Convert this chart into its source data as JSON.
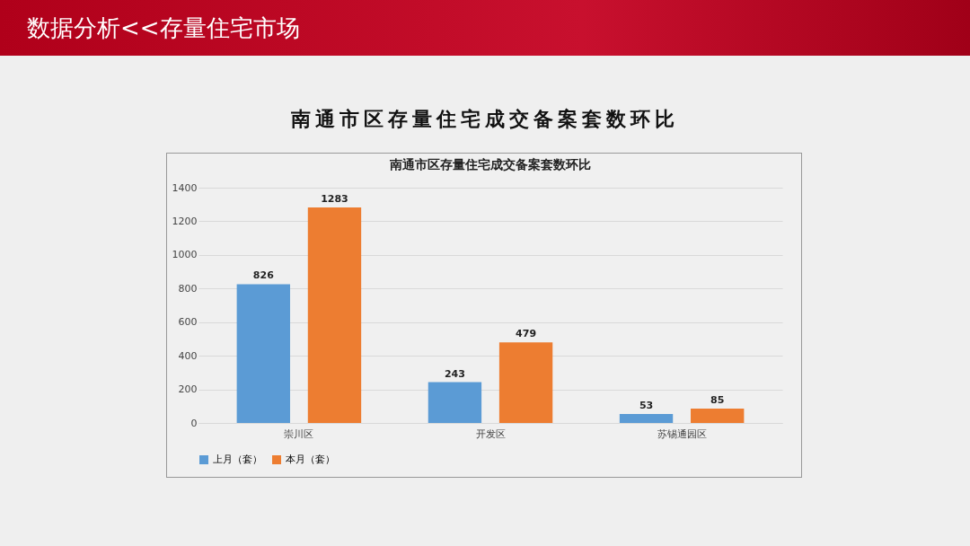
{
  "chart_data": {
    "type": "bar",
    "title": "南通市区存量住宅成交备案套数环比",
    "annotations": [
      "数据分析<<存量住宅市场",
      "南通市区存量住宅成交备案套数环比"
    ],
    "categories": [
      "崇川区",
      "开发区",
      "苏锡通园区"
    ],
    "series": [
      {
        "name": "上月（套）",
        "color": "#5b9bd5",
        "values": [
          826,
          243,
          53
        ]
      },
      {
        "name": "本月（套）",
        "color": "#ed7d31",
        "values": [
          1283,
          479,
          85
        ]
      }
    ],
    "ylim": [
      0,
      1400
    ],
    "yticks": [
      0,
      200,
      400,
      600,
      800,
      1000,
      1200,
      1400
    ],
    "grid": "y",
    "legend": "bottom",
    "data_labels": true
  }
}
